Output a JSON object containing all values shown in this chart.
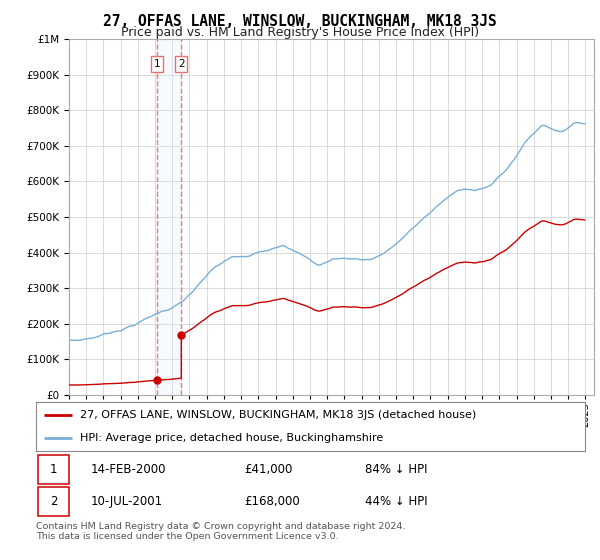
{
  "title": "27, OFFAS LANE, WINSLOW, BUCKINGHAM, MK18 3JS",
  "subtitle": "Price paid vs. HM Land Registry's House Price Index (HPI)",
  "legend_line1": "27, OFFAS LANE, WINSLOW, BUCKINGHAM, MK18 3JS (detached house)",
  "legend_line2": "HPI: Average price, detached house, Buckinghamshire",
  "footer": "Contains HM Land Registry data © Crown copyright and database right 2024.\nThis data is licensed under the Open Government Licence v3.0.",
  "sale1_date": "14-FEB-2000",
  "sale1_price": 41000,
  "sale2_date": "10-JUL-2001",
  "sale2_price": 168000,
  "sale1_hpi_text": "84% ↓ HPI",
  "sale2_hpi_text": "44% ↓ HPI",
  "line_color_red": "#cc0000",
  "line_color_blue": "#7ab0d4",
  "marker_color": "#cc0000",
  "dashed_color": "#e87070",
  "span_color": "#ddeeff",
  "background": "#ffffff",
  "grid_color": "#cccccc",
  "xlim_start": 1995.0,
  "xlim_end": 2025.5,
  "ylim_min": 0,
  "ylim_max": 1000000
}
